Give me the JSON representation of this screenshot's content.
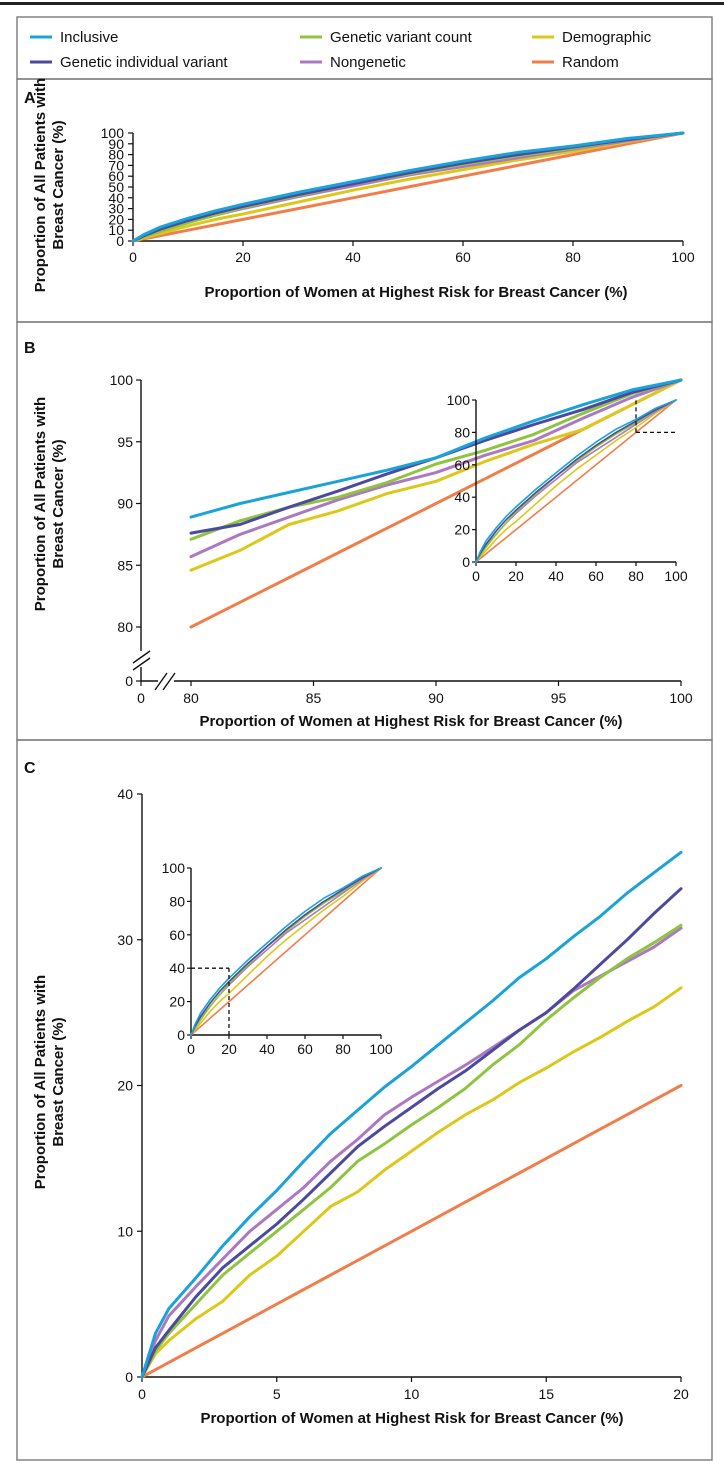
{
  "legend": [
    {
      "name": "Inclusive",
      "color": "#1ba3d9"
    },
    {
      "name": "Genetic variant count",
      "color": "#8ec43f"
    },
    {
      "name": "Demographic",
      "color": "#dcc81b"
    },
    {
      "name": "Genetic individual variant",
      "color": "#4b4a9e"
    },
    {
      "name": "Nongenetic",
      "color": "#ad78c2"
    },
    {
      "name": "Random",
      "color": "#f07e4b"
    }
  ],
  "chart_data": [
    {
      "panel": "A",
      "type": "line",
      "xlabel": "Proportion of Women at Highest Risk for Breast Cancer (%)",
      "ylabel": "Proportion of All Patients with Breast Cancer (%)",
      "xlim": [
        0,
        100
      ],
      "ylim": [
        0,
        100
      ],
      "xticks": [
        0,
        20,
        40,
        60,
        80,
        100
      ],
      "yticks": [
        0,
        10,
        20,
        30,
        40,
        50,
        60,
        70,
        80,
        90,
        100
      ],
      "x": [
        0,
        2,
        5,
        10,
        15,
        20,
        30,
        40,
        50,
        60,
        70,
        80,
        90,
        100
      ],
      "series": [
        {
          "name": "Random",
          "values": [
            0,
            2,
            5,
            10,
            15,
            20,
            30,
            40,
            50,
            60,
            70,
            80,
            90,
            100
          ]
        },
        {
          "name": "Demographic",
          "values": [
            0,
            3,
            7,
            14,
            20,
            25,
            36,
            47,
            57,
            66,
            75,
            83,
            92,
            100
          ]
        },
        {
          "name": "Nongenetic",
          "values": [
            0,
            4,
            10,
            17,
            24,
            30,
            41,
            51,
            61,
            69,
            77,
            85,
            93,
            100
          ]
        },
        {
          "name": "Genetic variant count",
          "values": [
            0,
            4,
            9,
            17,
            24,
            31,
            42,
            53,
            62,
            71,
            79,
            86,
            94,
            100
          ]
        },
        {
          "name": "Genetic individual variant",
          "values": [
            0,
            5,
            11,
            19,
            26,
            32,
            43,
            53,
            63,
            72,
            80,
            87,
            94,
            100
          ]
        },
        {
          "name": "Inclusive",
          "values": [
            0,
            6,
            13,
            21,
            28,
            34,
            45,
            55,
            65,
            74,
            82,
            88,
            95,
            100
          ]
        }
      ]
    },
    {
      "panel": "B",
      "type": "line",
      "xlabel": "Proportion of Women at Highest Risk for Breast Cancer (%)",
      "ylabel": "Proportion of All Patients with Breast Cancer (%)",
      "xlim": [
        80,
        100
      ],
      "ylim": [
        80,
        100
      ],
      "axis_break": true,
      "xticks": [
        0,
        80,
        85,
        90,
        95,
        100
      ],
      "yticks": [
        0,
        80,
        85,
        90,
        95,
        100
      ],
      "x": [
        80,
        82,
        84,
        86,
        88,
        90,
        92,
        94,
        96,
        98,
        100
      ],
      "series": [
        {
          "name": "Random",
          "values": [
            80,
            82,
            84,
            86,
            88,
            90,
            92,
            94,
            96,
            98,
            100
          ]
        },
        {
          "name": "Demographic",
          "values": [
            84.6,
            86.2,
            88.3,
            89.4,
            90.8,
            91.8,
            93.4,
            94.8,
            96.0,
            98.0,
            100
          ]
        },
        {
          "name": "Nongenetic",
          "values": [
            85.7,
            87.5,
            88.9,
            90.3,
            91.5,
            92.5,
            93.9,
            95.1,
            96.9,
            98.6,
            100
          ]
        },
        {
          "name": "Genetic variant count",
          "values": [
            87.1,
            88.6,
            89.7,
            90.5,
            91.7,
            93.2,
            94.3,
            95.6,
            97.3,
            98.9,
            100
          ]
        },
        {
          "name": "Genetic individual variant",
          "values": [
            87.6,
            88.3,
            89.7,
            91.0,
            92.4,
            93.7,
            95.1,
            96.4,
            97.6,
            99.0,
            100
          ]
        },
        {
          "name": "Inclusive",
          "values": [
            88.9,
            90.0,
            90.9,
            91.8,
            92.7,
            93.7,
            95.3,
            96.7,
            98.0,
            99.2,
            100
          ]
        }
      ],
      "inset": {
        "xlim": [
          0,
          100
        ],
        "ylim": [
          0,
          100
        ],
        "xticks": [
          0,
          20,
          40,
          60,
          80,
          100
        ],
        "yticks": [
          0,
          20,
          40,
          60,
          80,
          100
        ],
        "highlight": {
          "x": 80,
          "y": 80
        }
      }
    },
    {
      "panel": "C",
      "type": "line",
      "xlabel": "Proportion of Women at Highest Risk for Breast Cancer (%)",
      "ylabel": "Proportion of All Patients with Breast Cancer (%)",
      "xlim": [
        0,
        20
      ],
      "ylim": [
        0,
        40
      ],
      "xticks": [
        0,
        5,
        10,
        15,
        20
      ],
      "yticks": [
        0,
        10,
        20,
        30,
        40
      ],
      "x": [
        0,
        0.5,
        1,
        2,
        3,
        4,
        5,
        6,
        7,
        8,
        9,
        10,
        11,
        12,
        13,
        14,
        15,
        16,
        17,
        18,
        19,
        20
      ],
      "series": [
        {
          "name": "Random",
          "values": [
            0,
            0.5,
            1,
            2,
            3,
            4,
            5,
            6,
            7,
            8,
            9,
            10,
            11,
            12,
            13,
            14,
            15,
            16,
            17,
            18,
            19,
            20
          ]
        },
        {
          "name": "Demographic",
          "values": [
            0,
            1.6,
            2.5,
            4.0,
            5.2,
            7.0,
            8.3,
            10.0,
            11.7,
            12.7,
            14.2,
            15.5,
            16.8,
            18.0,
            19.0,
            20.2,
            21.2,
            22.3,
            23.3,
            24.4,
            25.4,
            26.7
          ]
        },
        {
          "name": "Nongenetic",
          "values": [
            0,
            2.5,
            4.2,
            6.2,
            8.1,
            10.0,
            11.5,
            13.0,
            14.8,
            16.3,
            18.0,
            19.2,
            20.3,
            21.4,
            22.6,
            23.8,
            25.0,
            26.5,
            27.5,
            28.5,
            29.5,
            30.8
          ]
        },
        {
          "name": "Genetic variant count",
          "values": [
            0,
            1.8,
            3.0,
            5.0,
            7.0,
            8.5,
            10.0,
            11.5,
            13.0,
            14.8,
            16.0,
            17.3,
            18.5,
            19.8,
            21.4,
            22.8,
            24.5,
            26.0,
            27.4,
            28.7,
            29.8,
            31.0
          ]
        },
        {
          "name": "Genetic individual variant",
          "values": [
            0,
            2.0,
            3.2,
            5.5,
            7.5,
            9.0,
            10.5,
            12.2,
            14.0,
            15.8,
            17.2,
            18.5,
            19.8,
            21.0,
            22.4,
            23.8,
            25.0,
            26.6,
            28.3,
            30.0,
            31.8,
            33.5
          ]
        },
        {
          "name": "Inclusive",
          "values": [
            0,
            3.0,
            4.7,
            6.8,
            9.0,
            11.0,
            12.8,
            14.8,
            16.7,
            18.3,
            19.9,
            21.3,
            22.8,
            24.3,
            25.8,
            27.4,
            28.7,
            30.2,
            31.6,
            33.2,
            34.6,
            36.0
          ]
        }
      ],
      "inset": {
        "xlim": [
          0,
          100
        ],
        "ylim": [
          0,
          100
        ],
        "xticks": [
          0,
          20,
          40,
          60,
          80,
          100
        ],
        "yticks": [
          0,
          20,
          40,
          60,
          80,
          100
        ],
        "highlight": {
          "x": 20,
          "y": 40
        }
      }
    }
  ]
}
